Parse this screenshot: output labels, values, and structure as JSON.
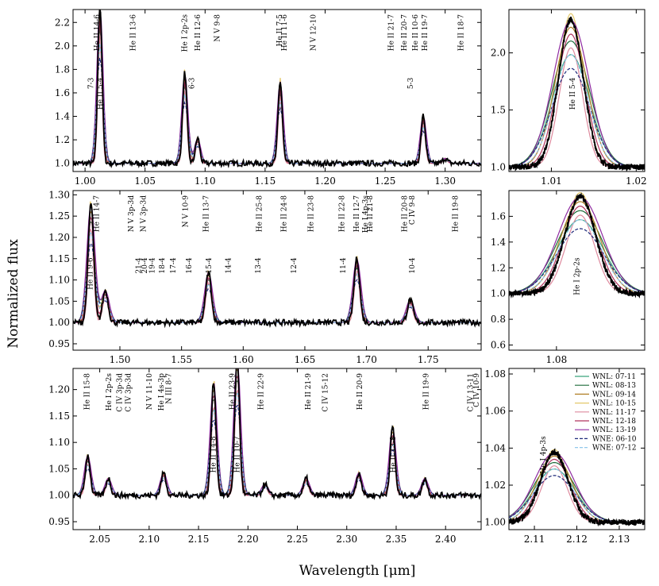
{
  "figure": {
    "xlabel": "Wavelength [μm]",
    "ylabel": "Normalized flux"
  },
  "legend": [
    {
      "label": "WNL: 07-11",
      "color": "#3aa37c",
      "dash": false
    },
    {
      "label": "WNL: 08-13",
      "color": "#1e6b3a",
      "dash": false
    },
    {
      "label": "WNL: 09-14",
      "color": "#b07f25",
      "dash": false
    },
    {
      "label": "WNL: 10-15",
      "color": "#e3c86a",
      "dash": false
    },
    {
      "label": "WNL: 11-17",
      "color": "#de8a9e",
      "dash": false
    },
    {
      "label": "WNL: 12-18",
      "color": "#b0345f",
      "dash": false
    },
    {
      "label": "WNL: 13-19",
      "color": "#8e2aa0",
      "dash": false
    },
    {
      "label": "WNE: 06-10",
      "color": "#1e2a7a",
      "dash": true
    },
    {
      "label": "WNE: 07-12",
      "color": "#92c8ec",
      "dash": true
    }
  ],
  "observed_color": "#000000",
  "chart_data": [
    {
      "id": "p1",
      "type": "line",
      "xlim": [
        0.99,
        1.33
      ],
      "ylim": [
        0.93,
        2.31
      ],
      "xticks": [
        1.0,
        1.05,
        1.1,
        1.15,
        1.2,
        1.25,
        1.3
      ],
      "yticks": [
        1.0,
        1.2,
        1.4,
        1.6,
        1.8,
        2.0,
        2.2
      ],
      "xdec": 2,
      "ydec": 1,
      "peaks": [
        [
          1.0124,
          1.25
        ],
        [
          1.0831,
          0.72
        ],
        [
          1.0938,
          0.2
        ],
        [
          1.1626,
          0.65
        ],
        [
          1.2818,
          0.38
        ],
        [
          1.3,
          0.04
        ]
      ],
      "width": 0.0022,
      "baseline": 1.0,
      "lines": [
        {
          "text": "He II 14-6",
          "x": 1.01
        },
        {
          "text": "He II 13-6",
          "x": 1.04
        },
        {
          "text": "He I 2p-2s",
          "x": 1.083
        },
        {
          "text": "He II 12-6",
          "x": 1.094
        },
        {
          "text": "N V 9-8",
          "x": 1.11
        },
        {
          "text": "He II 7-5",
          "x": 1.162
        },
        {
          "text": "He II 11-6",
          "x": 1.166
        },
        {
          "text": "N V 12-10",
          "x": 1.19
        },
        {
          "text": "He II 21-7",
          "x": 1.255
        },
        {
          "text": "He II 20-7",
          "x": 1.266
        },
        {
          "text": "He II 10-6",
          "x": 1.275
        },
        {
          "text": "He II 19-7",
          "x": 1.283
        },
        {
          "text": "He II 18-7",
          "x": 1.313
        }
      ],
      "extra_labels": [
        {
          "text": "7-3",
          "x": 1.005
        },
        {
          "text": "6-3",
          "x": 1.089
        },
        {
          "text": "5-3",
          "x": 1.271
        },
        {
          "text": "He II 5-4",
          "x": 1.0125
        }
      ]
    },
    {
      "id": "p1z",
      "type": "line",
      "xlim": [
        1.005,
        1.021
      ],
      "ylim": [
        0.96,
        2.38
      ],
      "xticks": [
        1.01,
        1.02
      ],
      "yticks": [
        1.0,
        1.5,
        2.0
      ],
      "xdec": 2,
      "ydec": 1,
      "peaks": [
        [
          1.0123,
          1.2
        ]
      ],
      "width": 0.0018,
      "baseline": 1.0,
      "lines": [],
      "extra_labels": [
        {
          "text": "He II 5-4",
          "x": 1.0125
        }
      ]
    },
    {
      "id": "p2",
      "type": "line",
      "xlim": [
        1.462,
        1.793
      ],
      "ylim": [
        0.935,
        1.31
      ],
      "xticks": [
        1.5,
        1.55,
        1.6,
        1.65,
        1.7,
        1.75
      ],
      "yticks": [
        0.95,
        1.0,
        1.05,
        1.1,
        1.15,
        1.2,
        1.25,
        1.3
      ],
      "xdec": 2,
      "ydec": 2,
      "peaks": [
        [
          1.4765,
          0.26
        ],
        [
          1.4882,
          0.07
        ],
        [
          1.5719,
          0.11
        ],
        [
          1.6922,
          0.14
        ],
        [
          1.7355,
          0.05
        ]
      ],
      "width": 0.0028,
      "baseline": 1.0,
      "lines": [
        {
          "text": "He II 14-7",
          "x": 1.481
        },
        {
          "text": "N V 3p-3d",
          "x": 1.509
        },
        {
          "text": "N V 3p-3d",
          "x": 1.519
        },
        {
          "text": "N V 10-9",
          "x": 1.553
        },
        {
          "text": "He II 13-7",
          "x": 1.57
        },
        {
          "text": "He II 25-8",
          "x": 1.613
        },
        {
          "text": "He II 24-8",
          "x": 1.633
        },
        {
          "text": "He II 23-8",
          "x": 1.655
        },
        {
          "text": "He II 22-8",
          "x": 1.68
        },
        {
          "text": "He II 12-7",
          "x": 1.692
        },
        {
          "text": "He I 4p-3s",
          "x": 1.699
        },
        {
          "text": "He II 21-8",
          "x": 1.703
        },
        {
          "text": "He II 20-8",
          "x": 1.731
        },
        {
          "text": "C IV 9-8",
          "x": 1.737
        },
        {
          "text": "He II 19-8",
          "x": 1.772
        }
      ],
      "extra_labels": [
        {
          "text": "21-4",
          "x": 1.515
        },
        {
          "text": "20-4",
          "x": 1.52
        },
        {
          "text": "19-4",
          "x": 1.526
        },
        {
          "text": "18-4",
          "x": 1.534
        },
        {
          "text": "17-4",
          "x": 1.543
        },
        {
          "text": "16-4",
          "x": 1.556
        },
        {
          "text": "15-4",
          "x": 1.572
        },
        {
          "text": "14-4",
          "x": 1.588
        },
        {
          "text": "13-4",
          "x": 1.612
        },
        {
          "text": "12-4",
          "x": 1.641
        },
        {
          "text": "11-4",
          "x": 1.681
        },
        {
          "text": "10-4",
          "x": 1.737
        },
        {
          "text": "He II 9-6",
          "x": 1.476
        }
      ]
    },
    {
      "id": "p2z",
      "type": "line",
      "xlim": [
        1.073,
        1.093
      ],
      "ylim": [
        0.56,
        1.8
      ],
      "xticks": [
        1.08
      ],
      "yticks": [
        0.6,
        0.8,
        1.0,
        1.2,
        1.4,
        1.6
      ],
      "xdec": 2,
      "ydec": 1,
      "peaks": [
        [
          1.0835,
          0.7
        ]
      ],
      "width": 0.0028,
      "baseline": 1.0,
      "lines": [],
      "extra_labels": [
        {
          "text": "He I 2p-2s",
          "x": 1.083
        }
      ]
    },
    {
      "id": "p3",
      "type": "line",
      "xlim": [
        2.023,
        2.436
      ],
      "ylim": [
        0.935,
        1.24
      ],
      "xticks": [
        2.05,
        2.1,
        2.15,
        2.2,
        2.25,
        2.3,
        2.35,
        2.4
      ],
      "yticks": [
        0.95,
        1.0,
        1.05,
        1.1,
        1.15,
        1.2
      ],
      "xdec": 2,
      "ydec": 2,
      "peaks": [
        [
          2.0379,
          0.07
        ],
        [
          2.0587,
          0.03
        ],
        [
          2.1147,
          0.04
        ],
        [
          2.1653,
          0.2
        ],
        [
          2.1891,
          0.24
        ],
        [
          2.2172,
          0.02
        ],
        [
          2.259,
          0.03
        ],
        [
          2.3123,
          0.04
        ],
        [
          2.3464,
          0.12
        ],
        [
          2.379,
          0.03
        ]
      ],
      "width": 0.003,
      "baseline": 1.0,
      "lines": [
        {
          "text": "He II 15-8",
          "x": 2.037
        },
        {
          "text": "He I 2p-2s",
          "x": 2.059
        },
        {
          "text": "C IV 3p-3d",
          "x": 2.07
        },
        {
          "text": "C IV 3p-3d",
          "x": 2.079
        },
        {
          "text": "N V 11-10",
          "x": 2.1
        },
        {
          "text": "He I 4s-3p",
          "x": 2.112
        },
        {
          "text": "N III 8-7",
          "x": 2.12
        },
        {
          "text": "He II 23-9",
          "x": 2.184
        },
        {
          "text": "He II 22-9",
          "x": 2.213
        },
        {
          "text": "He II 21-9",
          "x": 2.261
        },
        {
          "text": "C IV 15-12",
          "x": 2.278
        },
        {
          "text": "He II 20-9",
          "x": 2.313
        },
        {
          "text": "He II 19-9",
          "x": 2.38
        },
        {
          "text": "C IV 13-11",
          "x": 2.425
        },
        {
          "text": "C IV 10-9",
          "x": 2.431
        }
      ],
      "extra_labels": [
        {
          "text": "He II 14-8",
          "x": 2.165
        },
        {
          "text": "He II 10-7",
          "x": 2.189
        },
        {
          "text": "He II 13-8",
          "x": 2.347
        }
      ]
    },
    {
      "id": "p3z",
      "type": "line",
      "xlim": [
        2.104,
        2.136
      ],
      "ylim": [
        0.996,
        1.083
      ],
      "xticks": [
        2.11,
        2.12,
        2.13
      ],
      "yticks": [
        1.0,
        1.02,
        1.04,
        1.06,
        1.08
      ],
      "xdec": 2,
      "ydec": 2,
      "peaks": [
        [
          2.1147,
          0.035
        ]
      ],
      "width": 0.004,
      "baseline": 1.0,
      "lines": [],
      "extra_labels": [
        {
          "text": "He I 4p-3s",
          "x": 2.112
        }
      ]
    }
  ]
}
